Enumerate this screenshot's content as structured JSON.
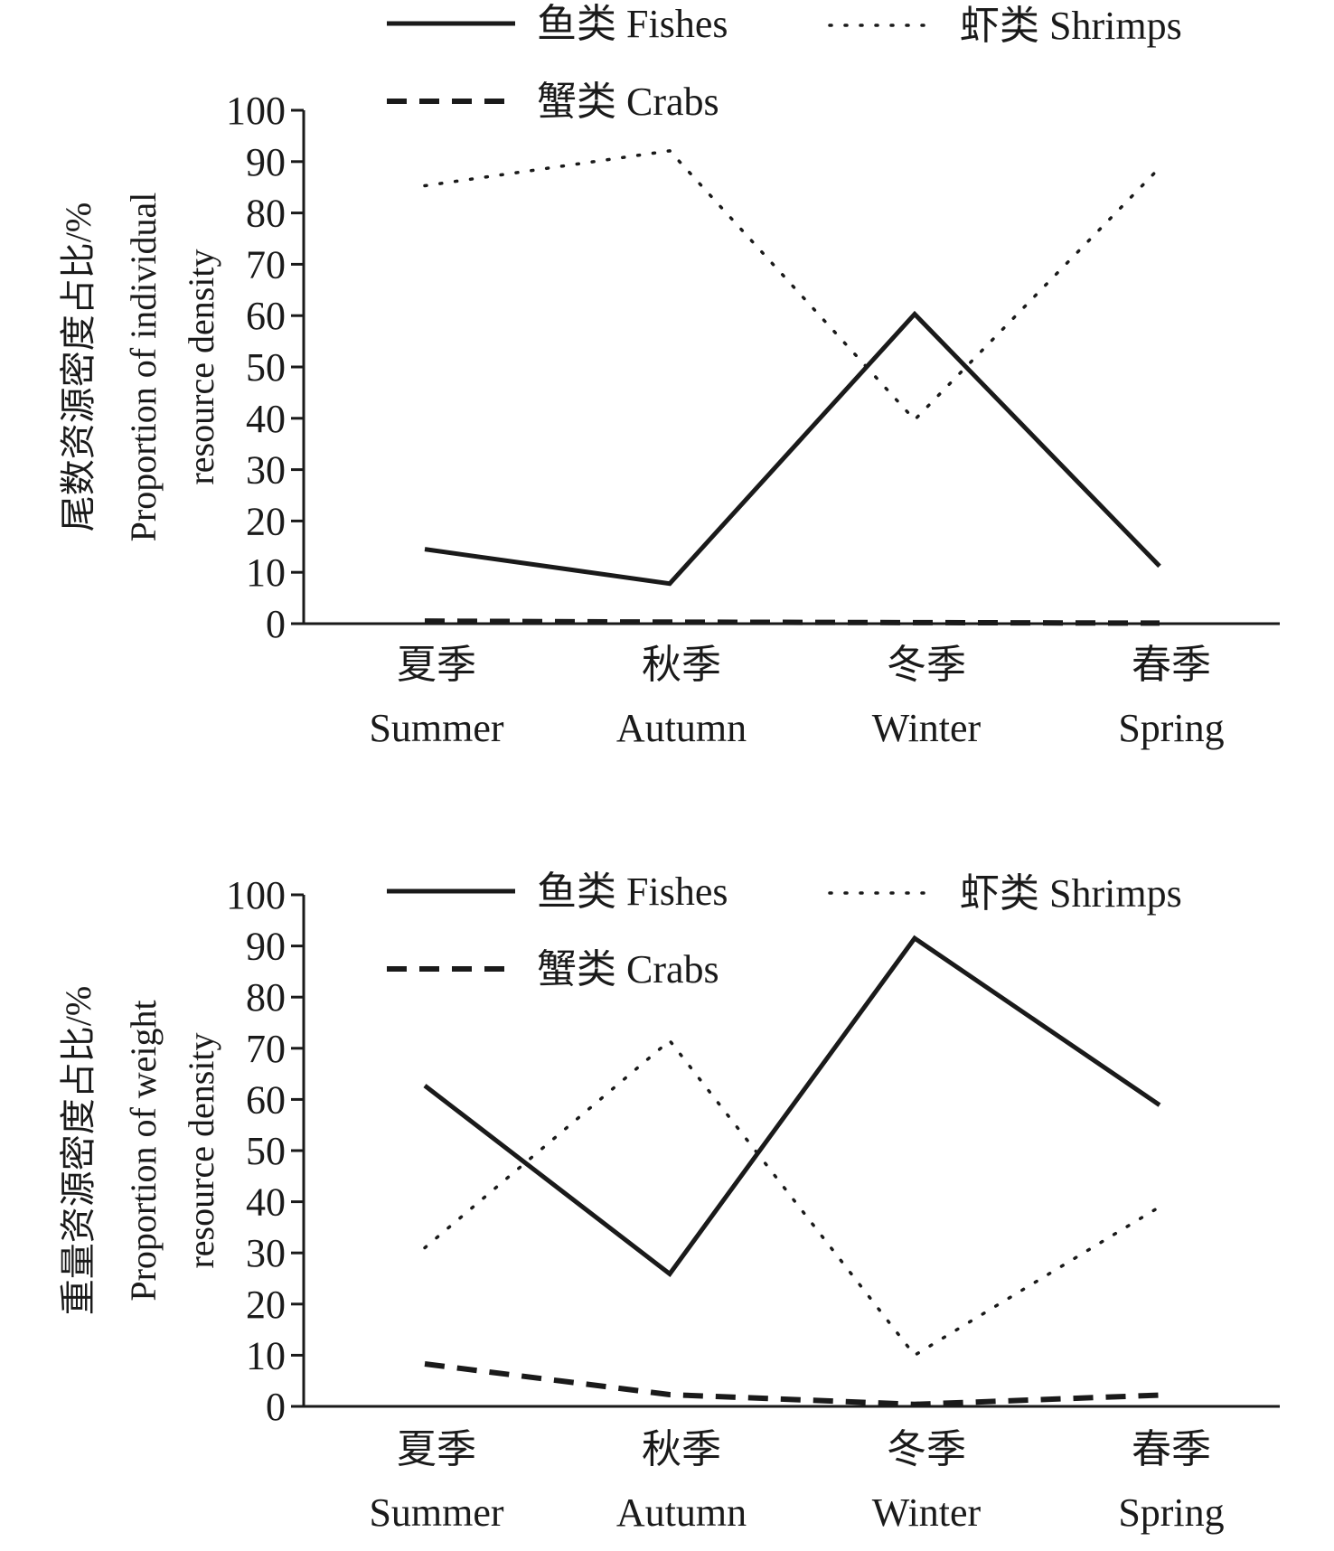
{
  "chart_data": [
    {
      "type": "line",
      "ylabel_cn": "尾数资源密度占比/%",
      "ylabel_en_1": "Proportion of individual",
      "ylabel_en_2": "resource density",
      "ylim": [
        0,
        100
      ],
      "yticks": [
        "0",
        "10",
        "20",
        "30",
        "40",
        "50",
        "60",
        "70",
        "80",
        "90",
        "100"
      ],
      "categories_cn": [
        "夏季",
        "秋季",
        "冬季",
        "春季"
      ],
      "categories_en": [
        "Summer",
        "Autumn",
        "Winter",
        "Spring"
      ],
      "legend_position": "top",
      "series": [
        {
          "name": "鱼类 Fishes",
          "style": "solid",
          "values": [
            14.5,
            7.8,
            60.3,
            11.2
          ]
        },
        {
          "name": "虾类 Shrimps",
          "style": "dotted",
          "values": [
            85.3,
            92.1,
            39.7,
            88.8
          ]
        },
        {
          "name": "蟹类 Crabs",
          "style": "dashed",
          "values": [
            0.5,
            0.3,
            0.2,
            0.1
          ]
        }
      ]
    },
    {
      "type": "line",
      "ylabel_cn": "重量资源密度占比/%",
      "ylabel_en_1": "Proportion of weight",
      "ylabel_en_2": "resource density",
      "ylim": [
        0,
        100
      ],
      "yticks": [
        "0",
        "10",
        "20",
        "30",
        "40",
        "50",
        "60",
        "70",
        "80",
        "90",
        "100"
      ],
      "categories_cn": [
        "夏季",
        "秋季",
        "冬季",
        "春季"
      ],
      "categories_en": [
        "Summer",
        "Autumn",
        "Winter",
        "Spring"
      ],
      "legend_position": "top",
      "series": [
        {
          "name": "鱼类 Fishes",
          "style": "solid",
          "values": [
            62.7,
            25.9,
            91.5,
            58.9
          ]
        },
        {
          "name": "虾类 Shrimps",
          "style": "dotted",
          "values": [
            31.0,
            71.5,
            10.0,
            39.0
          ]
        },
        {
          "name": "蟹类 Crabs",
          "style": "dashed",
          "values": [
            8.3,
            2.3,
            0.4,
            2.2
          ]
        }
      ]
    }
  ]
}
